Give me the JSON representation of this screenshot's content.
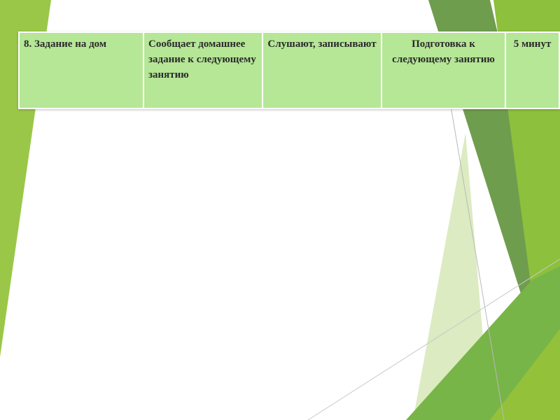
{
  "colors": {
    "table_fill": "#b5e796",
    "accent_green": "#8dc03c",
    "dark_green": "#6e9c4a"
  },
  "table": {
    "rows": [
      [
        "8. Задание на дом",
        "Сообщает домашнее задание к следующему занятию",
        "Слушают, записывают",
        "Подготовка к следующему занятию",
        "5 минут"
      ]
    ]
  }
}
